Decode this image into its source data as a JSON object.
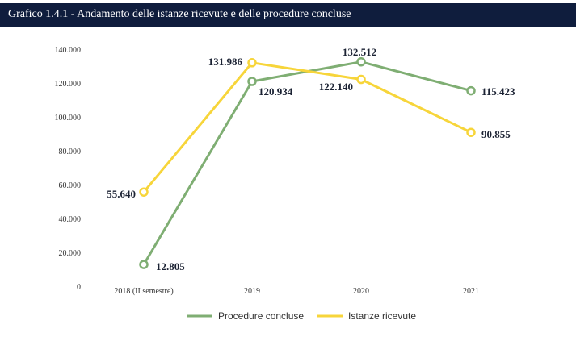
{
  "title": "Grafico 1.4.1 - Andamento delle istanze ricevute e delle procedure concluse",
  "colors": {
    "title_bg": "#0f1d3d",
    "procedure": "#7fae73",
    "istanze": "#f7d53a"
  },
  "chart_data": {
    "type": "line",
    "categories": [
      "2018 (II semestre)",
      "2019",
      "2020",
      "2021"
    ],
    "yticks": [
      "0",
      "20.000",
      "40.000",
      "60.000",
      "80.000",
      "100.000",
      "120.000",
      "140.000"
    ],
    "ylim": [
      0,
      140000
    ],
    "grid": false,
    "legend_position": "bottom",
    "series": [
      {
        "name": "Procedure concluse",
        "values": [
          12805,
          120934,
          132512,
          115423
        ],
        "labels": [
          "12.805",
          "120.934",
          "132.512",
          "115.423"
        ]
      },
      {
        "name": "Istanze ricevute",
        "values": [
          55640,
          131986,
          122140,
          90855
        ],
        "labels": [
          "55.640",
          "131.986",
          "122.140",
          "90.855"
        ]
      }
    ]
  }
}
